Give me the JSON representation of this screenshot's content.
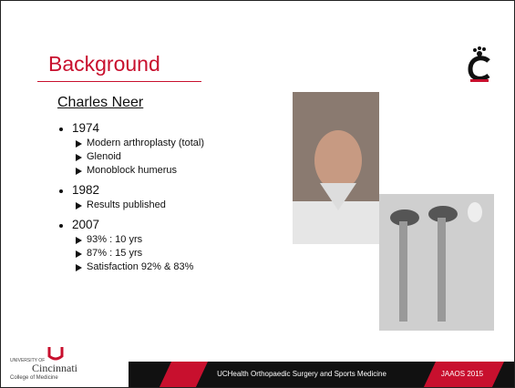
{
  "header": {
    "title": "Background"
  },
  "subtitle": "Charles Neer",
  "bullets": [
    {
      "text": "1974",
      "items": [
        "Modern arthroplasty (total)",
        "Glenoid",
        "Monoblock humerus"
      ]
    },
    {
      "text": "1982",
      "items": [
        "Results published"
      ]
    },
    {
      "text": "2007",
      "items": [
        "93% : 10 yrs",
        "87% : 15 yrs",
        "Satisfaction 92% & 83%"
      ]
    }
  ],
  "footer": {
    "logo_top": "UNIVERSITY OF",
    "logo_name": "Cincinnati",
    "logo_sub": "College of Medicine",
    "center": "UCHealth Orthopaedic Surgery and Sports Medicine",
    "right": "JAAOS 2015"
  }
}
